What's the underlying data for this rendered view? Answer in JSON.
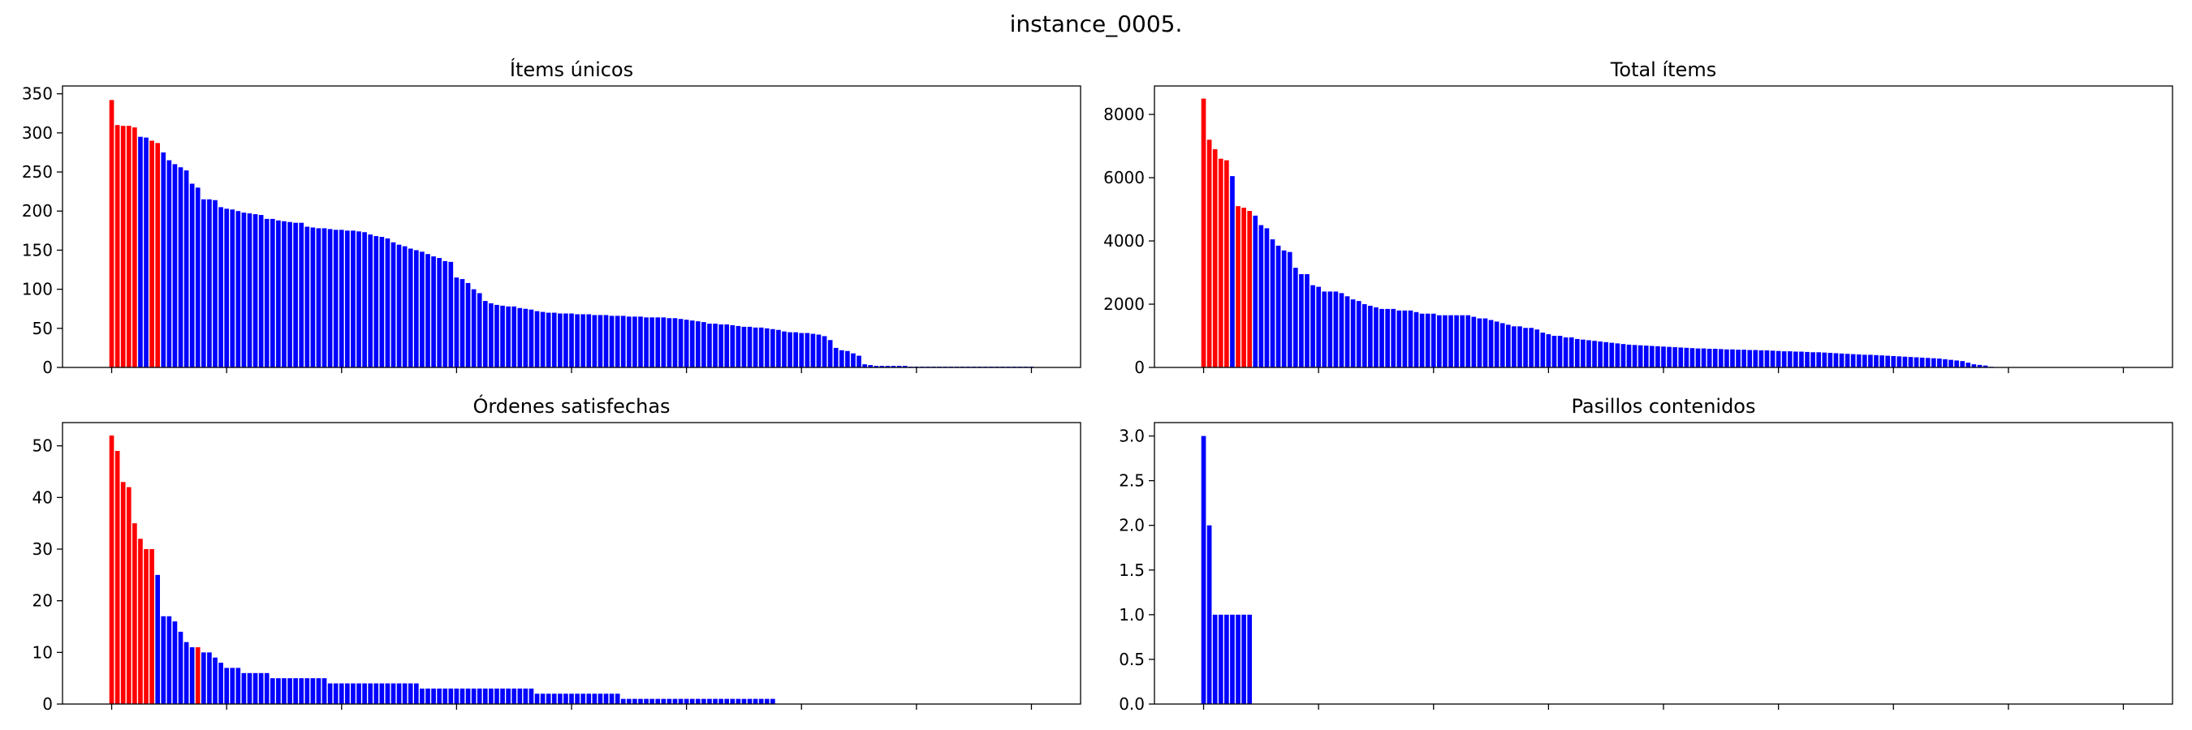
{
  "figure": {
    "suptitle": "instance_0005."
  },
  "colors": {
    "selected": "#ff0000",
    "other": "#0000ff"
  },
  "chart_data": [
    {
      "type": "bar",
      "title": "Ítems únicos",
      "ylim": [
        0,
        360
      ],
      "yticks": [
        0,
        50,
        100,
        150,
        200,
        250,
        300,
        350
      ],
      "ytick_labels": [
        "0",
        "50",
        "100",
        "150",
        "200",
        "250",
        "300",
        "350"
      ],
      "n_bars": 161,
      "highlighted_indices": [
        0,
        1,
        2,
        3,
        4,
        7,
        8
      ],
      "values": [
        342,
        310,
        309,
        309,
        307,
        295,
        294,
        290,
        287,
        275,
        265,
        260,
        256,
        252,
        235,
        230,
        215,
        215,
        214,
        205,
        203,
        202,
        200,
        198,
        197,
        196,
        195,
        190,
        190,
        188,
        187,
        186,
        185,
        185,
        180,
        179,
        178,
        178,
        177,
        176,
        176,
        175,
        175,
        174,
        173,
        170,
        168,
        167,
        165,
        160,
        157,
        155,
        152,
        150,
        148,
        145,
        142,
        140,
        136,
        135,
        115,
        113,
        108,
        100,
        95,
        85,
        82,
        80,
        79,
        78,
        78,
        76,
        75,
        74,
        72,
        71,
        70,
        70,
        69,
        69,
        69,
        68,
        68,
        68,
        67,
        67,
        67,
        66,
        66,
        66,
        65,
        65,
        65,
        64,
        64,
        64,
        64,
        63,
        63,
        62,
        61,
        60,
        59,
        58,
        56,
        56,
        55,
        55,
        54,
        53,
        52,
        52,
        51,
        51,
        50,
        49,
        48,
        46,
        45,
        45,
        44,
        44,
        43,
        42,
        40,
        35,
        25,
        22,
        21,
        18,
        15,
        4,
        3,
        2,
        2,
        2,
        2,
        2,
        2,
        1,
        1,
        1,
        1,
        1,
        1,
        1,
        1,
        1,
        1,
        1,
        1,
        1,
        1,
        1,
        1,
        1,
        1,
        1,
        1,
        1,
        1
      ]
    },
    {
      "type": "bar",
      "title": "Total ítems",
      "ylim": [
        0,
        8900
      ],
      "yticks": [
        0,
        2000,
        4000,
        6000,
        8000
      ],
      "ytick_labels": [
        "0",
        "2000",
        "4000",
        "6000",
        "8000"
      ],
      "n_bars": 161,
      "highlighted_indices": [
        0,
        1,
        2,
        3,
        4,
        6,
        7,
        8
      ],
      "values": [
        8500,
        7200,
        6900,
        6600,
        6550,
        6050,
        5100,
        5050,
        4950,
        4800,
        4500,
        4400,
        4050,
        3850,
        3700,
        3650,
        3150,
        2950,
        2950,
        2600,
        2550,
        2400,
        2400,
        2400,
        2350,
        2250,
        2150,
        2100,
        2000,
        1950,
        1900,
        1850,
        1850,
        1850,
        1800,
        1800,
        1800,
        1750,
        1700,
        1700,
        1700,
        1650,
        1650,
        1650,
        1650,
        1650,
        1650,
        1600,
        1550,
        1550,
        1500,
        1450,
        1400,
        1350,
        1300,
        1300,
        1250,
        1250,
        1200,
        1100,
        1050,
        1000,
        1000,
        950,
        950,
        900,
        880,
        860,
        840,
        820,
        800,
        780,
        760,
        740,
        720,
        710,
        700,
        690,
        680,
        670,
        660,
        650,
        640,
        630,
        620,
        610,
        600,
        600,
        590,
        590,
        580,
        570,
        570,
        560,
        560,
        550,
        550,
        540,
        540,
        530,
        520,
        510,
        510,
        500,
        500,
        490,
        480,
        480,
        470,
        460,
        450,
        440,
        430,
        420,
        410,
        400,
        400,
        390,
        380,
        370,
        360,
        350,
        340,
        330,
        320,
        310,
        300,
        290,
        280,
        260,
        240,
        220,
        200,
        150,
        100,
        80,
        60,
        20,
        10,
        8,
        6,
        5,
        4,
        3,
        3,
        2,
        2,
        2,
        2,
        1,
        1,
        1,
        1,
        1,
        1,
        1,
        1,
        1,
        1,
        1,
        1,
        1,
        1
      ]
    },
    {
      "type": "bar",
      "title": "Órdenes satisfechas",
      "ylim": [
        0,
        54.5
      ],
      "yticks": [
        0,
        10,
        20,
        30,
        40,
        50
      ],
      "ytick_labels": [
        "0",
        "10",
        "20",
        "30",
        "40",
        "50"
      ],
      "n_bars": 161,
      "highlighted_indices": [
        0,
        1,
        2,
        3,
        4,
        5,
        6,
        7,
        15
      ],
      "values": [
        52,
        49,
        43,
        42,
        35,
        32,
        30,
        30,
        25,
        17,
        17,
        16,
        14,
        12,
        11,
        11,
        10,
        10,
        9,
        8,
        7,
        7,
        7,
        6,
        6,
        6,
        6,
        6,
        5,
        5,
        5,
        5,
        5,
        5,
        5,
        5,
        5,
        5,
        4,
        4,
        4,
        4,
        4,
        4,
        4,
        4,
        4,
        4,
        4,
        4,
        4,
        4,
        4,
        4,
        3,
        3,
        3,
        3,
        3,
        3,
        3,
        3,
        3,
        3,
        3,
        3,
        3,
        3,
        3,
        3,
        3,
        3,
        3,
        3,
        2,
        2,
        2,
        2,
        2,
        2,
        2,
        2,
        2,
        2,
        2,
        2,
        2,
        2,
        2,
        1,
        1,
        1,
        1,
        1,
        1,
        1,
        1,
        1,
        1,
        1,
        1,
        1,
        1,
        1,
        1,
        1,
        1,
        1,
        1,
        1,
        1,
        1,
        1,
        1,
        1,
        1,
        0,
        0,
        0,
        0,
        0,
        0,
        0,
        0,
        0,
        0,
        0,
        0,
        0,
        0,
        0,
        0,
        0,
        0,
        0,
        0,
        0,
        0,
        0,
        0,
        0,
        0,
        0,
        0,
        0,
        0,
        0,
        0,
        0,
        0,
        0,
        0,
        0,
        0,
        0,
        0,
        0,
        0,
        0,
        0,
        0
      ]
    },
    {
      "type": "bar",
      "title": "Pasillos contenidos",
      "ylim": [
        0,
        3.15
      ],
      "yticks": [
        0,
        0.5,
        1.0,
        1.5,
        2.0,
        2.5,
        3.0
      ],
      "ytick_labels": [
        "0.0",
        "0.5",
        "1.0",
        "1.5",
        "2.0",
        "2.5",
        "3.0"
      ],
      "n_bars": 161,
      "highlighted_indices": [],
      "values": [
        3,
        2,
        1,
        1,
        1,
        1,
        1,
        1,
        1,
        0,
        0,
        0,
        0,
        0,
        0,
        0,
        0,
        0,
        0,
        0,
        0,
        0,
        0,
        0,
        0,
        0,
        0,
        0,
        0,
        0,
        0,
        0,
        0,
        0,
        0,
        0,
        0,
        0,
        0,
        0,
        0,
        0,
        0,
        0,
        0,
        0,
        0,
        0,
        0,
        0,
        0,
        0,
        0,
        0,
        0,
        0,
        0,
        0,
        0,
        0,
        0,
        0,
        0,
        0,
        0,
        0,
        0,
        0,
        0,
        0,
        0,
        0,
        0,
        0,
        0,
        0,
        0,
        0,
        0,
        0,
        0,
        0,
        0,
        0,
        0,
        0,
        0,
        0,
        0,
        0,
        0,
        0,
        0,
        0,
        0,
        0,
        0,
        0,
        0,
        0,
        0,
        0,
        0,
        0,
        0,
        0,
        0,
        0,
        0,
        0,
        0,
        0,
        0,
        0,
        0,
        0,
        0,
        0,
        0,
        0,
        0,
        0,
        0,
        0,
        0,
        0,
        0,
        0,
        0,
        0,
        0,
        0,
        0,
        0,
        0,
        0,
        0,
        0,
        0,
        0,
        0,
        0,
        0,
        0,
        0,
        0,
        0,
        0,
        0,
        0,
        0,
        0,
        0,
        0,
        0,
        0,
        0,
        0,
        0,
        0,
        0
      ]
    }
  ]
}
